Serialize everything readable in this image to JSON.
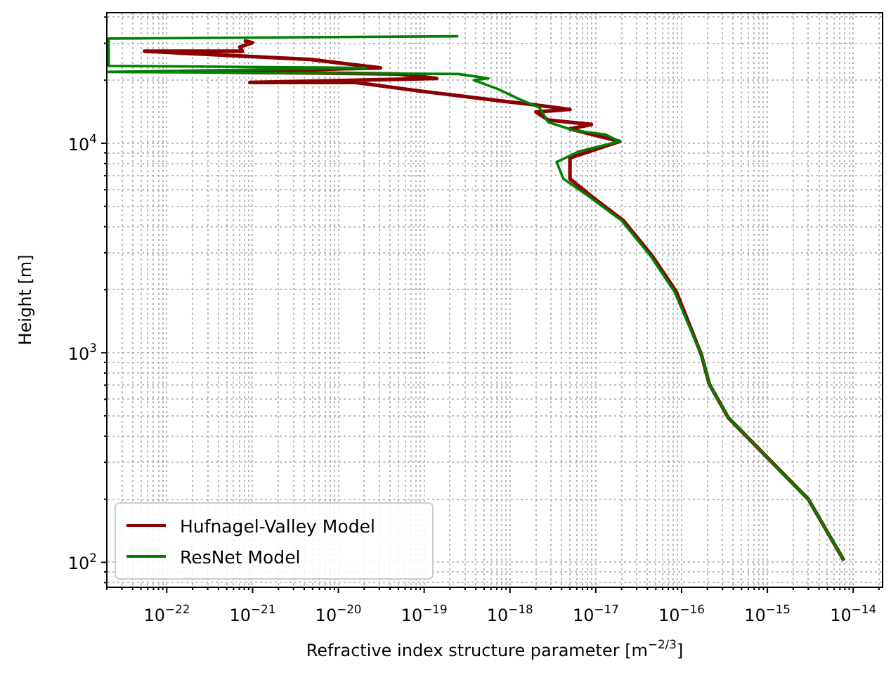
{
  "chart_data": {
    "type": "line",
    "xlabel": "Refractive index structure parameter [m$^{−2/3}$]",
    "ylabel": "Height [m]",
    "log": "xy",
    "grid": true,
    "legend": "bottom left",
    "marker": "none",
    "line_style": "solid",
    "xlim": [
      2e-23,
      2.2e-14
    ],
    "ylim": [
      76,
      42000
    ],
    "xticks": [
      {
        "value": 1e-22,
        "label": "10$^{−22}$"
      },
      {
        "value": 1e-21,
        "label": "10$^{−21}$"
      },
      {
        "value": 1e-20,
        "label": "10$^{−20}$"
      },
      {
        "value": 1e-19,
        "label": "10$^{−19}$"
      },
      {
        "value": 1e-18,
        "label": "10$^{−18}$"
      },
      {
        "value": 1e-17,
        "label": "10$^{−17}$"
      },
      {
        "value": 1e-16,
        "label": "10$^{−16}$"
      },
      {
        "value": 1e-15,
        "label": "10$^{−15}$"
      },
      {
        "value": 1e-14,
        "label": "10$^{−14}$"
      }
    ],
    "yticks": [
      {
        "value": 100,
        "label": "10$^{2}$"
      },
      {
        "value": 1000,
        "label": "10$^{3}$"
      },
      {
        "value": 10000,
        "label": "10$^{4}$"
      }
    ],
    "series": [
      {
        "name": "Hufnagel-Valley Model",
        "color": "#8b0000",
        "x": [
          7.8e-15,
          3e-15,
          3.5e-16,
          2.1e-16,
          1.7e-16,
          8.7e-17,
          4.6e-17,
          2.1e-17,
          9.3e-18,
          5e-18,
          5e-18,
          1.9e-17,
          5e-18,
          8.9e-18,
          2.8e-18,
          2e-18,
          5e-18,
          1.4e-18,
          9.1e-19,
          8.5e-20,
          1.6e-20,
          9.3e-22,
          1.4e-19,
          5e-20,
          3.6e-22,
          3.1e-20,
          4.7e-21,
          5.5e-23,
          7.6e-22,
          7.1e-22,
          1e-21,
          7.9e-22
        ],
        "values": [
          102,
          200,
          490,
          710,
          980,
          1950,
          2880,
          4270,
          5500,
          6760,
          8510,
          10200,
          11700,
          12300,
          12900,
          14100,
          14500,
          15500,
          15800,
          17800,
          19500,
          19500,
          20400,
          21400,
          21900,
          22900,
          25100,
          27500,
          27500,
          28800,
          30200,
          30900
        ]
      },
      {
        "name": "ResNet Model",
        "color": "#008000",
        "x": [
          7.8e-15,
          3e-15,
          3.5e-16,
          2.1e-16,
          1.7e-16,
          8.3e-17,
          4.4e-17,
          2e-17,
          8.7e-18,
          4.2e-18,
          3.5e-18,
          6.3e-18,
          1.9e-17,
          1.3e-17,
          5.6e-18,
          2.8e-18,
          2.2e-18,
          1.3e-18,
          7.1e-19,
          3.8e-19,
          5.6e-19,
          2.5e-19,
          2.1e-23,
          2.1e-20,
          2.1e-23,
          2.1e-23,
          2.5e-19
        ],
        "values": [
          102,
          200,
          490,
          710,
          980,
          1950,
          2880,
          4270,
          5500,
          6760,
          8130,
          9120,
          10200,
          11000,
          11500,
          12600,
          14800,
          16200,
          18200,
          20000,
          20400,
          21400,
          21900,
          22900,
          23400,
          31600,
          32400
        ]
      }
    ]
  }
}
